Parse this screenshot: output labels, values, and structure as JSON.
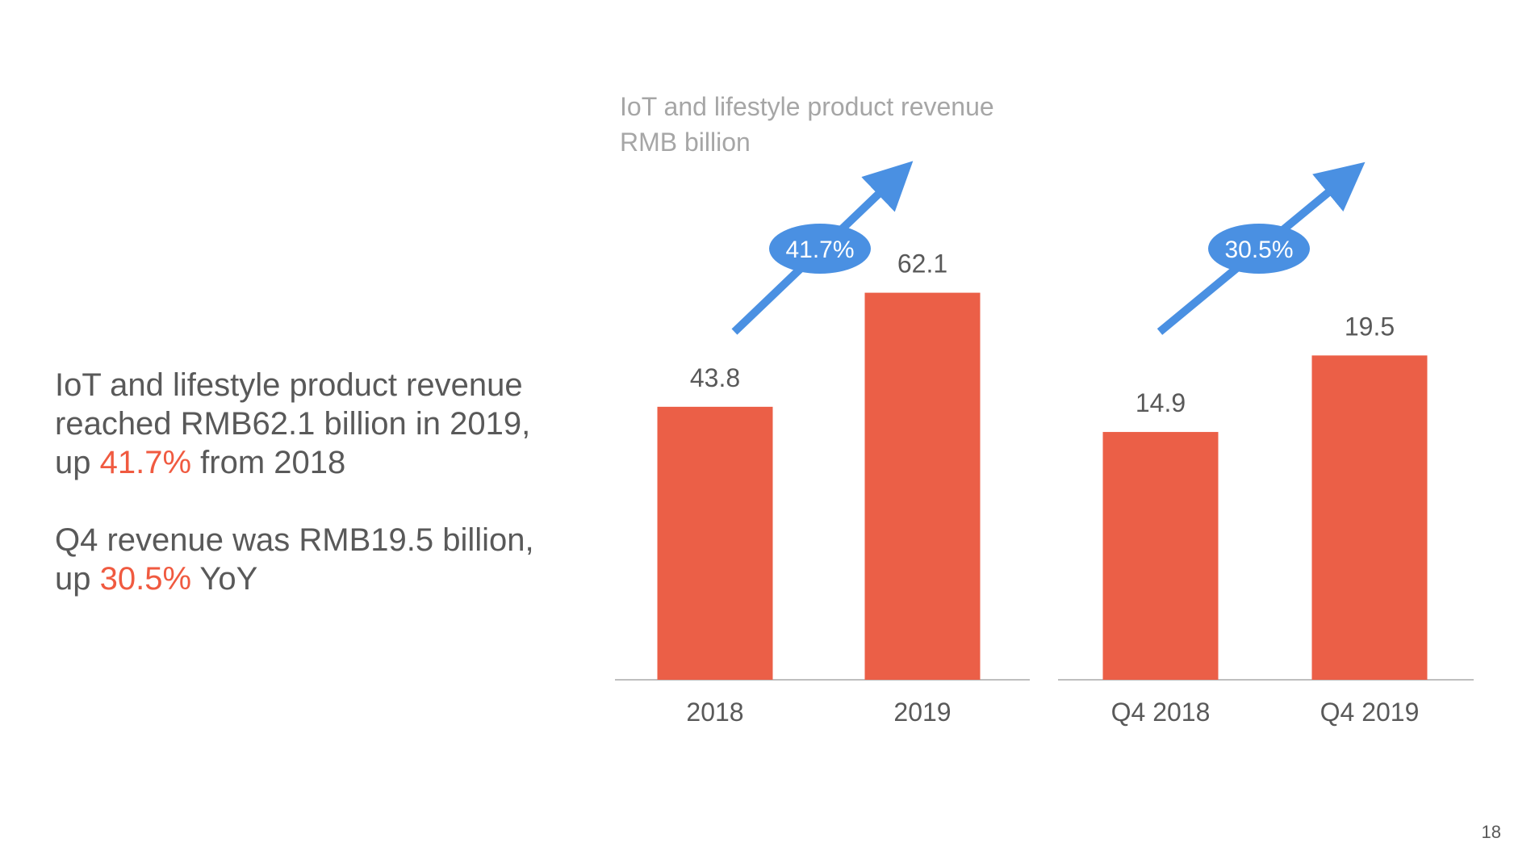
{
  "headline": {
    "line1": "IoT and lifestyle product revenue",
    "line2": "reached RMB62.1 billion in 2019,",
    "line3_prefix": "up ",
    "line3_highlight": "41.7%",
    "line3_suffix": " from 2018",
    "line4": "Q4 revenue was RMB19.5 billion,",
    "line5_prefix": "up ",
    "line5_highlight": "30.5%",
    "line5_suffix": " YoY",
    "highlight_color": "#f05a40"
  },
  "page_number": "18",
  "colors": {
    "bar": "#eb5f47",
    "arrow": "#4a90e2",
    "title": "#a6a6a6",
    "text": "#595959",
    "axis": "#bfbfbf"
  },
  "chart_data": [
    {
      "type": "bar",
      "title": "IoT and lifestyle product revenue",
      "subtitle": "RMB billion",
      "categories": [
        "2018",
        "2019"
      ],
      "values": [
        43.8,
        62.1
      ],
      "value_labels": [
        "43.8",
        "62.1"
      ],
      "growth_label": "41.7%",
      "ylim": [
        0,
        70
      ]
    },
    {
      "type": "bar",
      "categories": [
        "Q4 2018",
        "Q4 2019"
      ],
      "values": [
        14.9,
        19.5
      ],
      "value_labels": [
        "14.9",
        "19.5"
      ],
      "growth_label": "30.5%",
      "ylim": [
        0,
        22
      ]
    }
  ]
}
